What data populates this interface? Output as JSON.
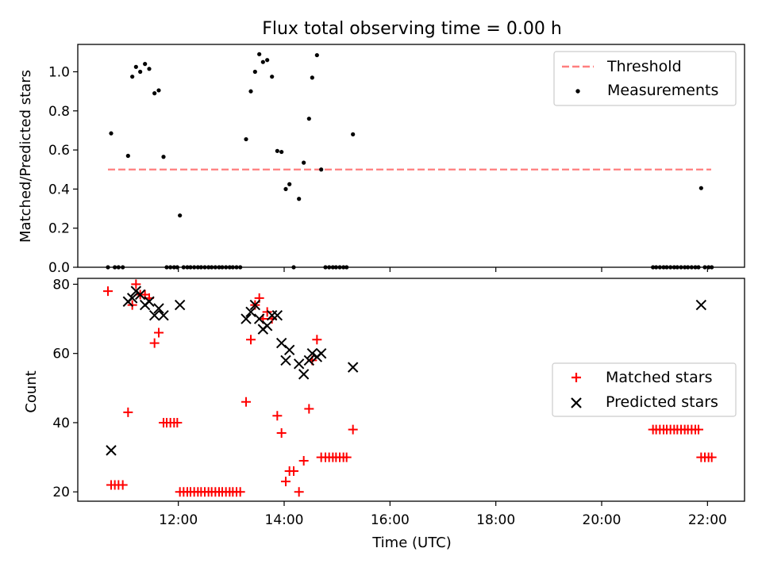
{
  "title": "Flux total observing time = 0.00 h",
  "xlabel": "Time (UTC)",
  "xticks": [
    {
      "value": 12,
      "label": "12:00"
    },
    {
      "value": 14,
      "label": "14:00"
    },
    {
      "value": 16,
      "label": "16:00"
    },
    {
      "value": 18,
      "label": "18:00"
    },
    {
      "value": 20,
      "label": "20:00"
    },
    {
      "value": 22,
      "label": "22:00"
    }
  ],
  "colors": {
    "threshold": "#ff7f7f",
    "measurements": "#000000",
    "matched": "#ff0000",
    "predicted": "#000000"
  },
  "chart_data": [
    {
      "type": "scatter",
      "title": "Flux total observing time = 0.00 h",
      "xlabel": "",
      "ylabel": "Matched/Predicted stars",
      "xlim": [
        10.1,
        22.7
      ],
      "ylim": [
        0.0,
        1.14
      ],
      "yticks": [
        0.0,
        0.2,
        0.4,
        0.6,
        0.8,
        1.0
      ],
      "yticklabels": [
        "0.0",
        "0.2",
        "0.4",
        "0.6",
        "0.8",
        "1.0"
      ],
      "legend": {
        "position": "top-right",
        "entries": [
          "Threshold",
          "Measurements"
        ]
      },
      "series": [
        {
          "name": "Threshold",
          "kind": "line",
          "style": "dashed",
          "color": "#ff7f7f",
          "x": [
            10.67,
            22.07
          ],
          "y": [
            0.5,
            0.5
          ]
        },
        {
          "name": "Measurements",
          "kind": "point",
          "color": "#000000",
          "points": [
            [
              10.67,
              0.0
            ],
            [
              10.73,
              0.685
            ],
            [
              10.8,
              0.0
            ],
            [
              10.87,
              0.0
            ],
            [
              10.95,
              0.0
            ],
            [
              11.05,
              0.57
            ],
            [
              11.13,
              0.975
            ],
            [
              11.2,
              1.025
            ],
            [
              11.28,
              1.0
            ],
            [
              11.37,
              1.04
            ],
            [
              11.45,
              1.015
            ],
            [
              11.55,
              0.89
            ],
            [
              11.63,
              0.905
            ],
            [
              11.72,
              0.565
            ],
            [
              11.78,
              0.0
            ],
            [
              11.85,
              0.0
            ],
            [
              11.92,
              0.0
            ],
            [
              11.98,
              0.0
            ],
            [
              12.03,
              0.265
            ],
            [
              12.1,
              0.0
            ],
            [
              12.17,
              0.0
            ],
            [
              12.23,
              0.0
            ],
            [
              12.3,
              0.0
            ],
            [
              12.37,
              0.0
            ],
            [
              12.43,
              0.0
            ],
            [
              12.5,
              0.0
            ],
            [
              12.57,
              0.0
            ],
            [
              12.63,
              0.0
            ],
            [
              12.7,
              0.0
            ],
            [
              12.77,
              0.0
            ],
            [
              12.83,
              0.0
            ],
            [
              12.9,
              0.0
            ],
            [
              12.97,
              0.0
            ],
            [
              13.03,
              0.0
            ],
            [
              13.1,
              0.0
            ],
            [
              13.17,
              0.0
            ],
            [
              13.28,
              0.655
            ],
            [
              13.37,
              0.9
            ],
            [
              13.45,
              1.0
            ],
            [
              13.53,
              1.09
            ],
            [
              13.6,
              1.05
            ],
            [
              13.68,
              1.06
            ],
            [
              13.77,
              0.975
            ],
            [
              13.87,
              0.595
            ],
            [
              13.95,
              0.59
            ],
            [
              14.03,
              0.4
            ],
            [
              14.1,
              0.425
            ],
            [
              14.18,
              0.0
            ],
            [
              14.28,
              0.35
            ],
            [
              14.37,
              0.535
            ],
            [
              14.47,
              0.76
            ],
            [
              14.53,
              0.97
            ],
            [
              14.62,
              1.085
            ],
            [
              14.7,
              0.5
            ],
            [
              14.78,
              0.0
            ],
            [
              14.85,
              0.0
            ],
            [
              14.92,
              0.0
            ],
            [
              14.98,
              0.0
            ],
            [
              15.05,
              0.0
            ],
            [
              15.12,
              0.0
            ],
            [
              15.18,
              0.0
            ],
            [
              15.3,
              0.68
            ],
            [
              20.97,
              0.0
            ],
            [
              21.03,
              0.0
            ],
            [
              21.1,
              0.0
            ],
            [
              21.17,
              0.0
            ],
            [
              21.23,
              0.0
            ],
            [
              21.3,
              0.0
            ],
            [
              21.37,
              0.0
            ],
            [
              21.43,
              0.0
            ],
            [
              21.5,
              0.0
            ],
            [
              21.57,
              0.0
            ],
            [
              21.63,
              0.0
            ],
            [
              21.7,
              0.0
            ],
            [
              21.77,
              0.0
            ],
            [
              21.83,
              0.0
            ],
            [
              21.88,
              0.405
            ],
            [
              21.95,
              0.0
            ],
            [
              22.02,
              0.0
            ],
            [
              22.08,
              0.0
            ]
          ]
        }
      ]
    },
    {
      "type": "scatter",
      "title": "",
      "xlabel": "Time (UTC)",
      "ylabel": "Count",
      "xlim": [
        10.1,
        22.7
      ],
      "ylim": [
        17.3,
        81.7
      ],
      "yticks": [
        20,
        40,
        60,
        80
      ],
      "yticklabels": [
        "20",
        "40",
        "60",
        "80"
      ],
      "legend": {
        "position": "center-right",
        "entries": [
          "Matched stars",
          "Predicted stars"
        ]
      },
      "series": [
        {
          "name": "Matched stars",
          "marker": "+",
          "color": "#ff0000",
          "points": [
            [
              10.67,
              78
            ],
            [
              10.73,
              22
            ],
            [
              10.8,
              22
            ],
            [
              10.87,
              22
            ],
            [
              10.95,
              22
            ],
            [
              11.05,
              43
            ],
            [
              11.13,
              74
            ],
            [
              11.2,
              80
            ],
            [
              11.28,
              77
            ],
            [
              11.37,
              77
            ],
            [
              11.45,
              76
            ],
            [
              11.55,
              63
            ],
            [
              11.63,
              66
            ],
            [
              11.72,
              40
            ],
            [
              11.78,
              40
            ],
            [
              11.85,
              40
            ],
            [
              11.92,
              40
            ],
            [
              11.98,
              40
            ],
            [
              12.03,
              20
            ],
            [
              12.1,
              20
            ],
            [
              12.17,
              20
            ],
            [
              12.23,
              20
            ],
            [
              12.3,
              20
            ],
            [
              12.37,
              20
            ],
            [
              12.43,
              20
            ],
            [
              12.5,
              20
            ],
            [
              12.57,
              20
            ],
            [
              12.63,
              20
            ],
            [
              12.7,
              20
            ],
            [
              12.77,
              20
            ],
            [
              12.83,
              20
            ],
            [
              12.9,
              20
            ],
            [
              12.97,
              20
            ],
            [
              13.03,
              20
            ],
            [
              13.1,
              20
            ],
            [
              13.17,
              20
            ],
            [
              13.28,
              46
            ],
            [
              13.37,
              64
            ],
            [
              13.45,
              74
            ],
            [
              13.53,
              76
            ],
            [
              13.6,
              70
            ],
            [
              13.68,
              72
            ],
            [
              13.77,
              70
            ],
            [
              13.87,
              42
            ],
            [
              13.95,
              37
            ],
            [
              14.03,
              23
            ],
            [
              14.1,
              26
            ],
            [
              14.18,
              26
            ],
            [
              14.28,
              20
            ],
            [
              14.37,
              29
            ],
            [
              14.47,
              44
            ],
            [
              14.53,
              58
            ],
            [
              14.62,
              64
            ],
            [
              14.7,
              30
            ],
            [
              14.78,
              30
            ],
            [
              14.85,
              30
            ],
            [
              14.92,
              30
            ],
            [
              14.98,
              30
            ],
            [
              15.05,
              30
            ],
            [
              15.12,
              30
            ],
            [
              15.18,
              30
            ],
            [
              15.3,
              38
            ],
            [
              20.97,
              38
            ],
            [
              21.03,
              38
            ],
            [
              21.1,
              38
            ],
            [
              21.17,
              38
            ],
            [
              21.23,
              38
            ],
            [
              21.3,
              38
            ],
            [
              21.37,
              38
            ],
            [
              21.43,
              38
            ],
            [
              21.5,
              38
            ],
            [
              21.57,
              38
            ],
            [
              21.63,
              38
            ],
            [
              21.7,
              38
            ],
            [
              21.77,
              38
            ],
            [
              21.83,
              38
            ],
            [
              21.88,
              30
            ],
            [
              21.95,
              30
            ],
            [
              22.02,
              30
            ],
            [
              22.08,
              30
            ]
          ]
        },
        {
          "name": "Predicted stars",
          "marker": "x",
          "color": "#000000",
          "points": [
            [
              10.73,
              32
            ],
            [
              11.05,
              75
            ],
            [
              11.13,
              76
            ],
            [
              11.2,
              78
            ],
            [
              11.28,
              77
            ],
            [
              11.37,
              74
            ],
            [
              11.45,
              75
            ],
            [
              11.55,
              71
            ],
            [
              11.63,
              73
            ],
            [
              11.72,
              71
            ],
            [
              12.03,
              74
            ],
            [
              13.28,
              70
            ],
            [
              13.37,
              72
            ],
            [
              13.45,
              74
            ],
            [
              13.53,
              70
            ],
            [
              13.6,
              67
            ],
            [
              13.68,
              68
            ],
            [
              13.77,
              71
            ],
            [
              13.87,
              71
            ],
            [
              13.95,
              63
            ],
            [
              14.03,
              58
            ],
            [
              14.1,
              61
            ],
            [
              14.28,
              57
            ],
            [
              14.37,
              54
            ],
            [
              14.47,
              58
            ],
            [
              14.53,
              60
            ],
            [
              14.62,
              59
            ],
            [
              14.7,
              60
            ],
            [
              15.3,
              56
            ],
            [
              21.88,
              74
            ]
          ]
        }
      ]
    }
  ]
}
